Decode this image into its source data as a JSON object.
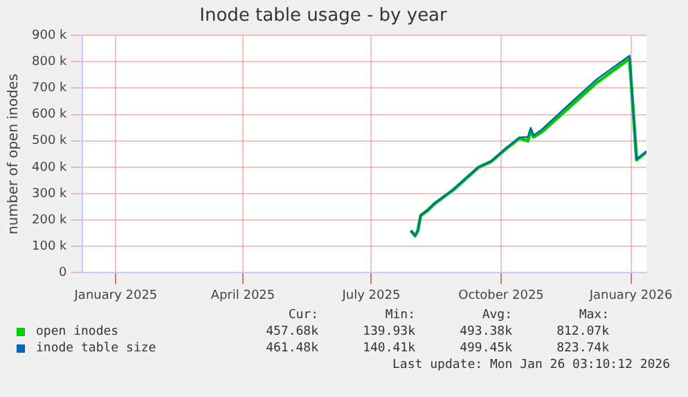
{
  "chart_data": {
    "type": "line",
    "title": "Inode table usage - by year",
    "ylabel": "number of open inodes",
    "x": [
      "2025-08-12",
      "2025-08-15",
      "2025-08-17",
      "2025-08-19",
      "2025-08-24",
      "2025-08-29",
      "2025-09-11",
      "2025-09-29",
      "2025-10-08",
      "2025-10-18",
      "2025-10-28",
      "2025-11-03",
      "2025-11-05",
      "2025-11-07",
      "2025-11-13",
      "2025-12-04",
      "2025-12-22",
      "2026-01-14",
      "2026-01-19",
      "2026-01-26"
    ],
    "series": [
      {
        "name": "open inodes",
        "color": "#00cc00",
        "values": [
          160000,
          140000,
          160000,
          217000,
          237000,
          263000,
          314000,
          400000,
          422000,
          468000,
          510000,
          500000,
          540000,
          515000,
          535000,
          636000,
          722000,
          812000,
          428000,
          458000
        ]
      },
      {
        "name": "inode table size",
        "color": "#0066b3",
        "values": [
          161000,
          140000,
          161000,
          218000,
          238000,
          264000,
          315000,
          401000,
          423000,
          470000,
          513000,
          515000,
          550000,
          521000,
          544000,
          648000,
          735000,
          823000,
          430000,
          461000
        ]
      }
    ],
    "xlim": [
      "2024-12-22",
      "2026-01-26"
    ],
    "xticks": [
      {
        "value": "2025-01-15",
        "label": "January 2025"
      },
      {
        "value": "2025-04-15",
        "label": "April 2025"
      },
      {
        "value": "2025-07-15",
        "label": "July 2025"
      },
      {
        "value": "2025-10-15",
        "label": "October 2025"
      },
      {
        "value": "2026-01-15",
        "label": "January 2026"
      }
    ],
    "ylim": [
      0,
      900000
    ],
    "yticks": [
      0,
      {
        "value": 100000,
        "label": "100 k"
      },
      {
        "value": 200000,
        "label": "200 k"
      },
      {
        "value": 300000,
        "label": "300 k"
      },
      {
        "value": 400000,
        "label": "400 k"
      },
      {
        "value": 500000,
        "label": "500 k"
      },
      {
        "value": 600000,
        "label": "600 k"
      },
      {
        "value": 700000,
        "label": "700 k"
      },
      {
        "value": 800000,
        "label": "800 k"
      },
      {
        "value": 900000,
        "label": "900 k"
      }
    ],
    "grid": true,
    "legend": "bottom",
    "marker": "none",
    "line_style": "solid",
    "annotations": [
      "Cur:",
      "Min:",
      "Avg:",
      "Max:",
      "457.68k",
      "139.93k",
      "493.38k",
      "812.07k",
      "461.48k",
      "140.41k",
      "499.45k",
      "823.74k",
      "Last update: Mon Jan 26 03:10:12 2026"
    ]
  }
}
